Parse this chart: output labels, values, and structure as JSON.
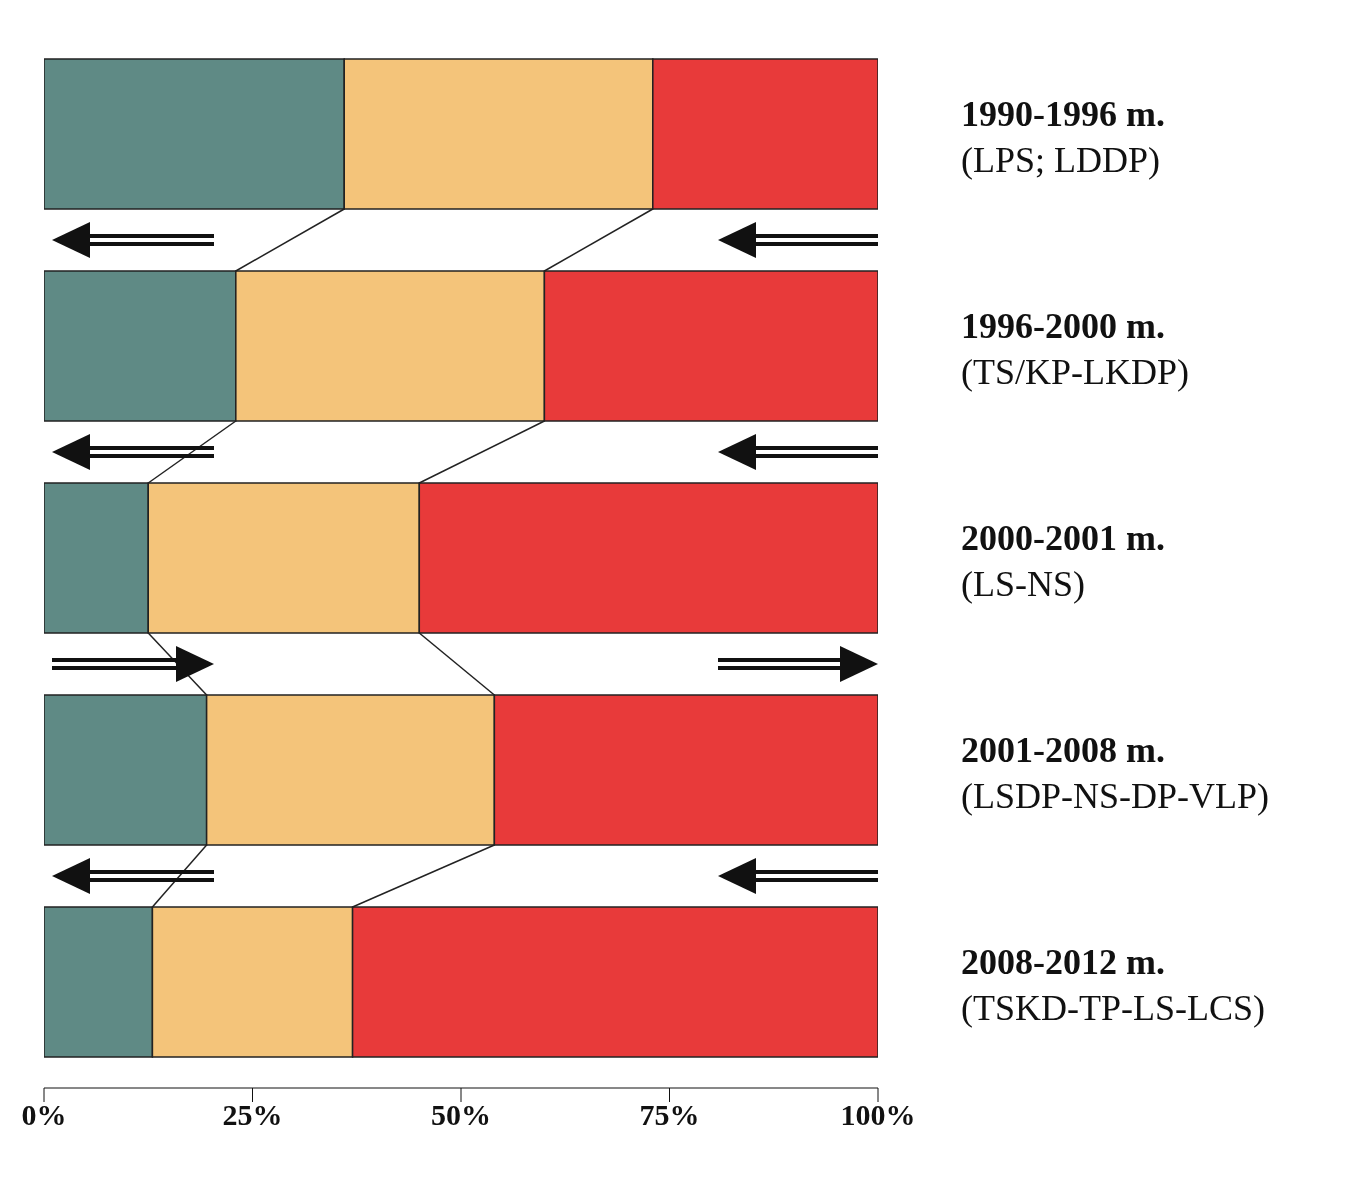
{
  "chart_data": {
    "type": "bar",
    "orientation": "horizontal",
    "stacked": true,
    "categories": [
      "1990-1996 m.\n(LPS; LDDP)",
      "1996-2000 m.\n(TS/KP-LKDP)",
      "2000-2001 m.\n(LS-NS)",
      "2001-2008 m.\n(LSDP-NS-DP-VLP)",
      "2008-2012 m.\n(TSKD-TP-LS-LCS)"
    ],
    "series": [
      {
        "color": "#5f8a85",
        "values": [
          36,
          23,
          12.5,
          19.5,
          13
        ]
      },
      {
        "color": "#f4c47a",
        "values": [
          37,
          37,
          32.5,
          34.5,
          24
        ]
      },
      {
        "color": "#e83a3a",
        "values": [
          27,
          40,
          55,
          46,
          63
        ]
      }
    ],
    "xlim": [
      0,
      100
    ],
    "xticks": [
      {
        "value": 0,
        "label": "0%"
      },
      {
        "value": 25,
        "label": "25%"
      },
      {
        "value": 50,
        "label": "50%"
      },
      {
        "value": 75,
        "label": "75%"
      },
      {
        "value": 100,
        "label": "100%"
      }
    ]
  }
}
